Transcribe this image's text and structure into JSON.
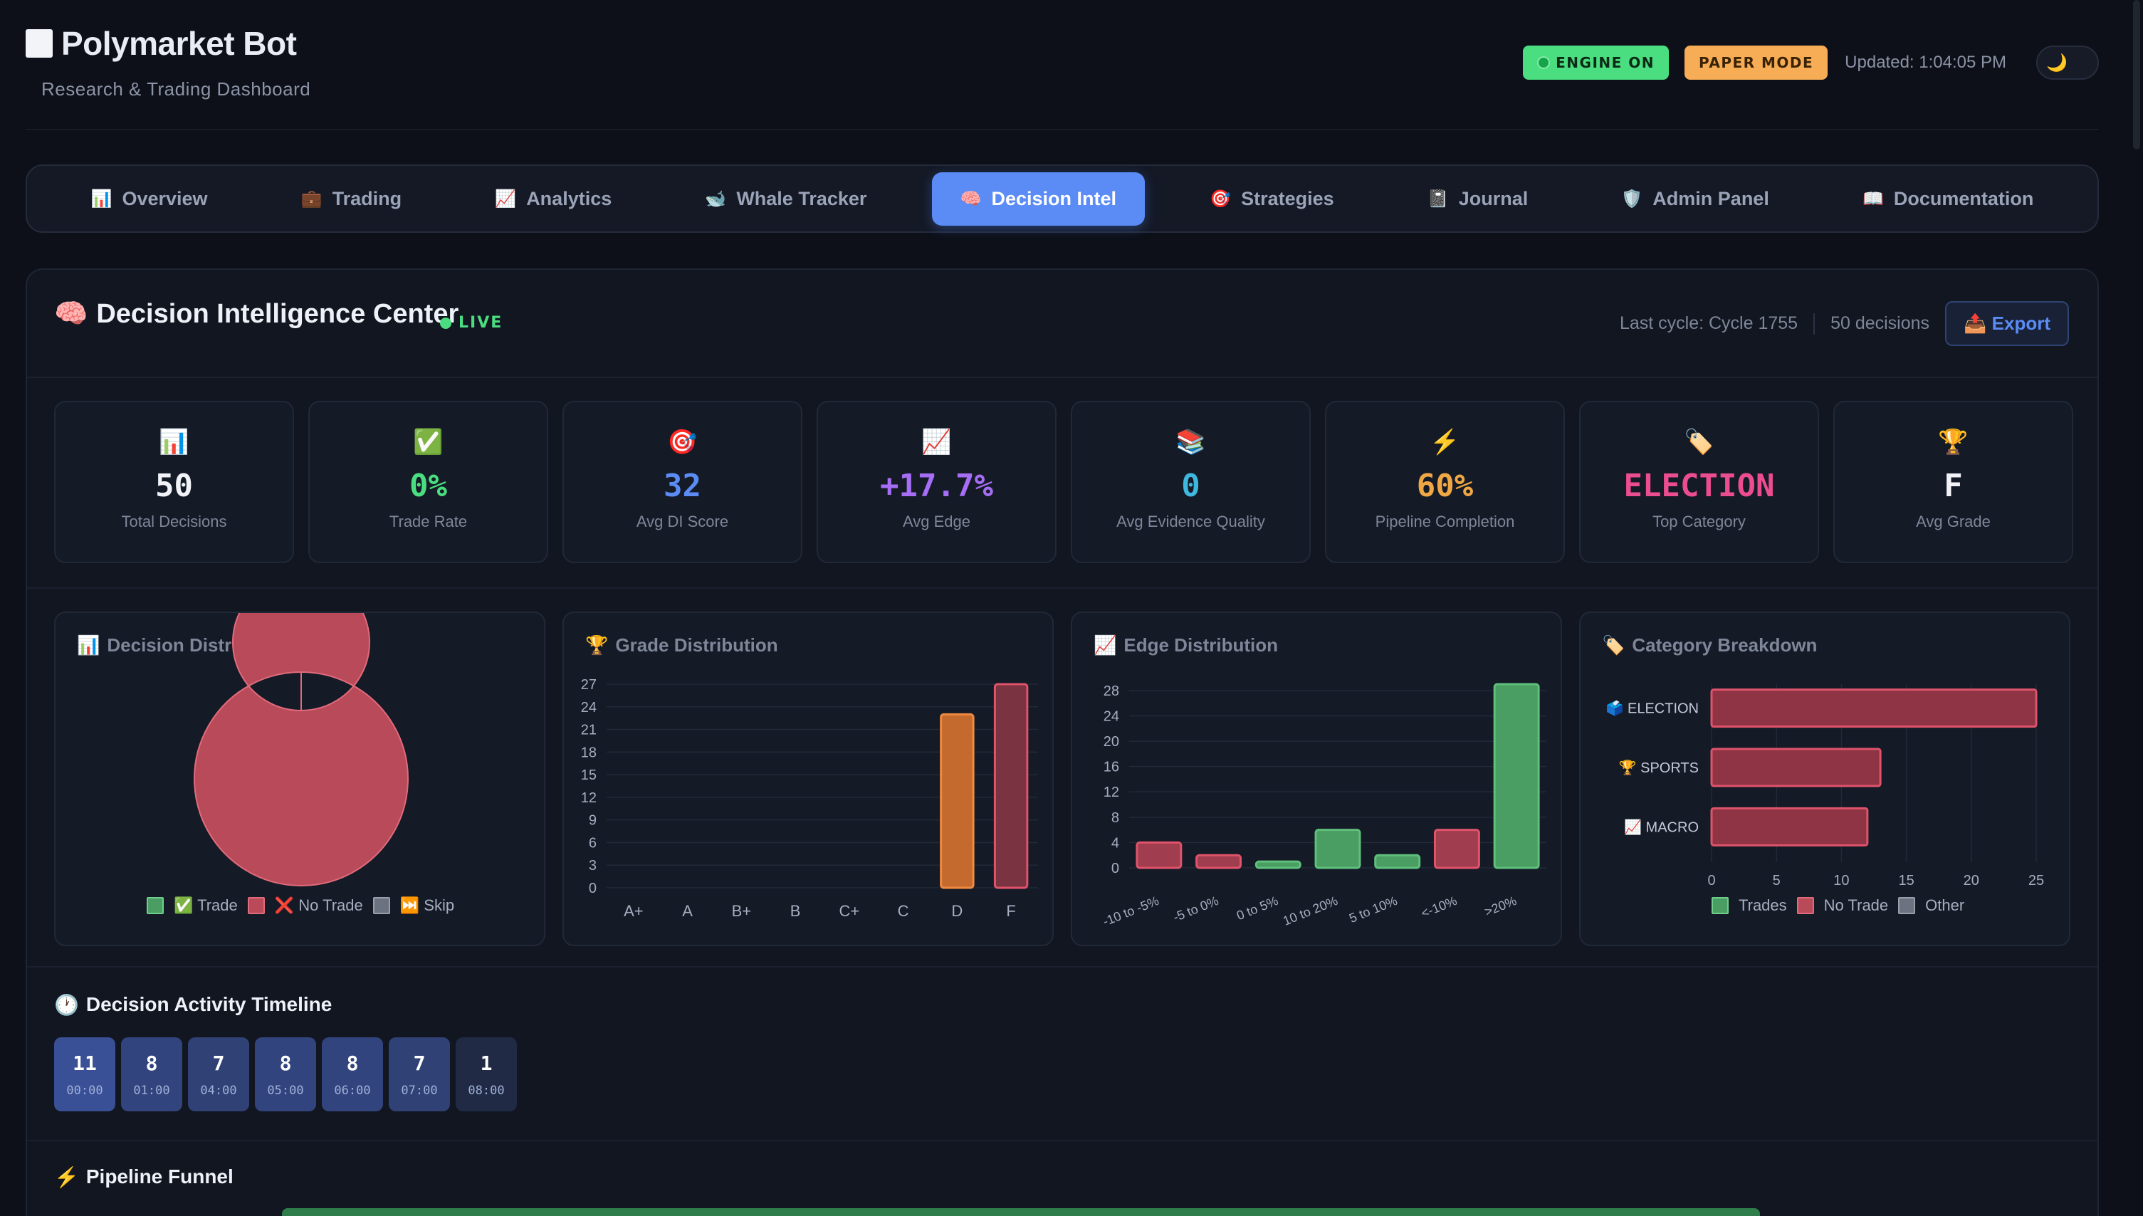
{
  "app": {
    "title": "Polymarket Bot",
    "subtitle": "Research & Trading Dashboard",
    "engine_label": "ENGINE ON",
    "mode_label": "PAPER MODE",
    "updated": "Updated: 1:04:05 PM",
    "theme_icon": "🌙"
  },
  "nav": [
    {
      "icon": "📊",
      "label": "Overview"
    },
    {
      "icon": "💼",
      "label": "Trading"
    },
    {
      "icon": "📈",
      "label": "Analytics"
    },
    {
      "icon": "🐋",
      "label": "Whale Tracker"
    },
    {
      "icon": "🧠",
      "label": "Decision Intel",
      "active": true
    },
    {
      "icon": "🎯",
      "label": "Strategies"
    },
    {
      "icon": "📓",
      "label": "Journal"
    },
    {
      "icon": "🛡️",
      "label": "Admin Panel"
    },
    {
      "icon": "📖",
      "label": "Documentation"
    }
  ],
  "main": {
    "icon": "🧠",
    "title": "Decision Intelligence Center",
    "live": "LIVE",
    "last_cycle": "Last cycle: Cycle 1755",
    "decisions": "50 decisions",
    "export_icon": "📤",
    "export_label": "Export"
  },
  "stats": [
    {
      "icon": "📊",
      "value": "50",
      "label": "Total Decisions",
      "color": "#f1f3f8"
    },
    {
      "icon": "✅",
      "value": "0%",
      "label": "Trade Rate",
      "color": "#4ade80"
    },
    {
      "icon": "🎯",
      "value": "32",
      "label": "Avg DI Score",
      "color": "#5b8cf5"
    },
    {
      "icon": "📈",
      "value": "+17.7%",
      "label": "Avg Edge",
      "color": "#a56ef5"
    },
    {
      "icon": "📚",
      "value": "0",
      "label": "Avg Evidence Quality",
      "color": "#3fb8e0"
    },
    {
      "icon": "⚡",
      "value": "60%",
      "label": "Pipeline Completion",
      "color": "#f0a744"
    },
    {
      "icon": "🏷️",
      "value": "ELECTION",
      "label": "Top Category",
      "color": "#ec4d8f"
    },
    {
      "icon": "🏆",
      "value": "F",
      "label": "Avg Grade",
      "color": "#f1f3f8"
    }
  ],
  "panels": {
    "decision": {
      "icon": "📊",
      "title": "Decision Distribution"
    },
    "grade": {
      "icon": "🏆",
      "title": "Grade Distribution"
    },
    "edge": {
      "icon": "📈",
      "title": "Edge Distribution"
    },
    "category": {
      "icon": "🏷️",
      "title": "Category Breakdown"
    }
  },
  "colors": {
    "trade": "#4a9d63",
    "no_trade": "#b84a5a",
    "skip": "#6b7280",
    "grade_d": "#c46a2e",
    "accent": "#5b8cf5"
  },
  "chart_data": [
    {
      "type": "pie",
      "title": "Decision Distribution",
      "categories": [
        "✅ Trade",
        "❌ No Trade",
        "⏭️ Skip"
      ],
      "values": [
        0,
        50,
        0
      ],
      "legend_position": "bottom"
    },
    {
      "type": "bar",
      "title": "Grade Distribution",
      "categories": [
        "A+",
        "A",
        "B+",
        "B",
        "C+",
        "C",
        "D",
        "F"
      ],
      "values": [
        0,
        0,
        0,
        0,
        0,
        0,
        23,
        27
      ],
      "ylim": [
        0,
        27
      ],
      "yticks": [
        0,
        3,
        6,
        9,
        12,
        15,
        18,
        21,
        24,
        27
      ]
    },
    {
      "type": "bar",
      "title": "Edge Distribution",
      "categories": [
        "-10 to -5%",
        "-5 to 0%",
        "0 to 5%",
        "10 to 20%",
        "5 to 10%",
        "<-10%",
        ">20%"
      ],
      "values": [
        4,
        2,
        1,
        6,
        2,
        6,
        29
      ],
      "ylim": [
        0,
        29
      ],
      "yticks": [
        0,
        4,
        8,
        12,
        16,
        20,
        24,
        28
      ]
    },
    {
      "type": "bar",
      "orientation": "horizontal",
      "title": "Category Breakdown",
      "categories": [
        "🗳️ ELECTION",
        "🏆 SPORTS",
        "📈 MACRO"
      ],
      "series": [
        {
          "name": "Trades",
          "values": [
            0,
            0,
            0
          ]
        },
        {
          "name": "No Trade",
          "values": [
            25,
            13,
            12
          ]
        },
        {
          "name": "Other",
          "values": [
            0,
            0,
            0
          ]
        }
      ],
      "xlim": [
        0,
        25
      ],
      "xticks": [
        0,
        5,
        10,
        15,
        20,
        25
      ],
      "legend_position": "bottom"
    }
  ],
  "timeline": {
    "icon": "🕐",
    "title": "Decision Activity Timeline",
    "items": [
      {
        "count": "11",
        "time": "00:00",
        "level": 11
      },
      {
        "count": "8",
        "time": "01:00",
        "level": 8
      },
      {
        "count": "7",
        "time": "04:00",
        "level": 7
      },
      {
        "count": "8",
        "time": "05:00",
        "level": 8
      },
      {
        "count": "8",
        "time": "06:00",
        "level": 8
      },
      {
        "count": "7",
        "time": "07:00",
        "level": 7
      },
      {
        "count": "1",
        "time": "08:00",
        "level": 1
      }
    ]
  },
  "funnel": {
    "icon": "⚡",
    "title": "Pipeline Funnel"
  }
}
